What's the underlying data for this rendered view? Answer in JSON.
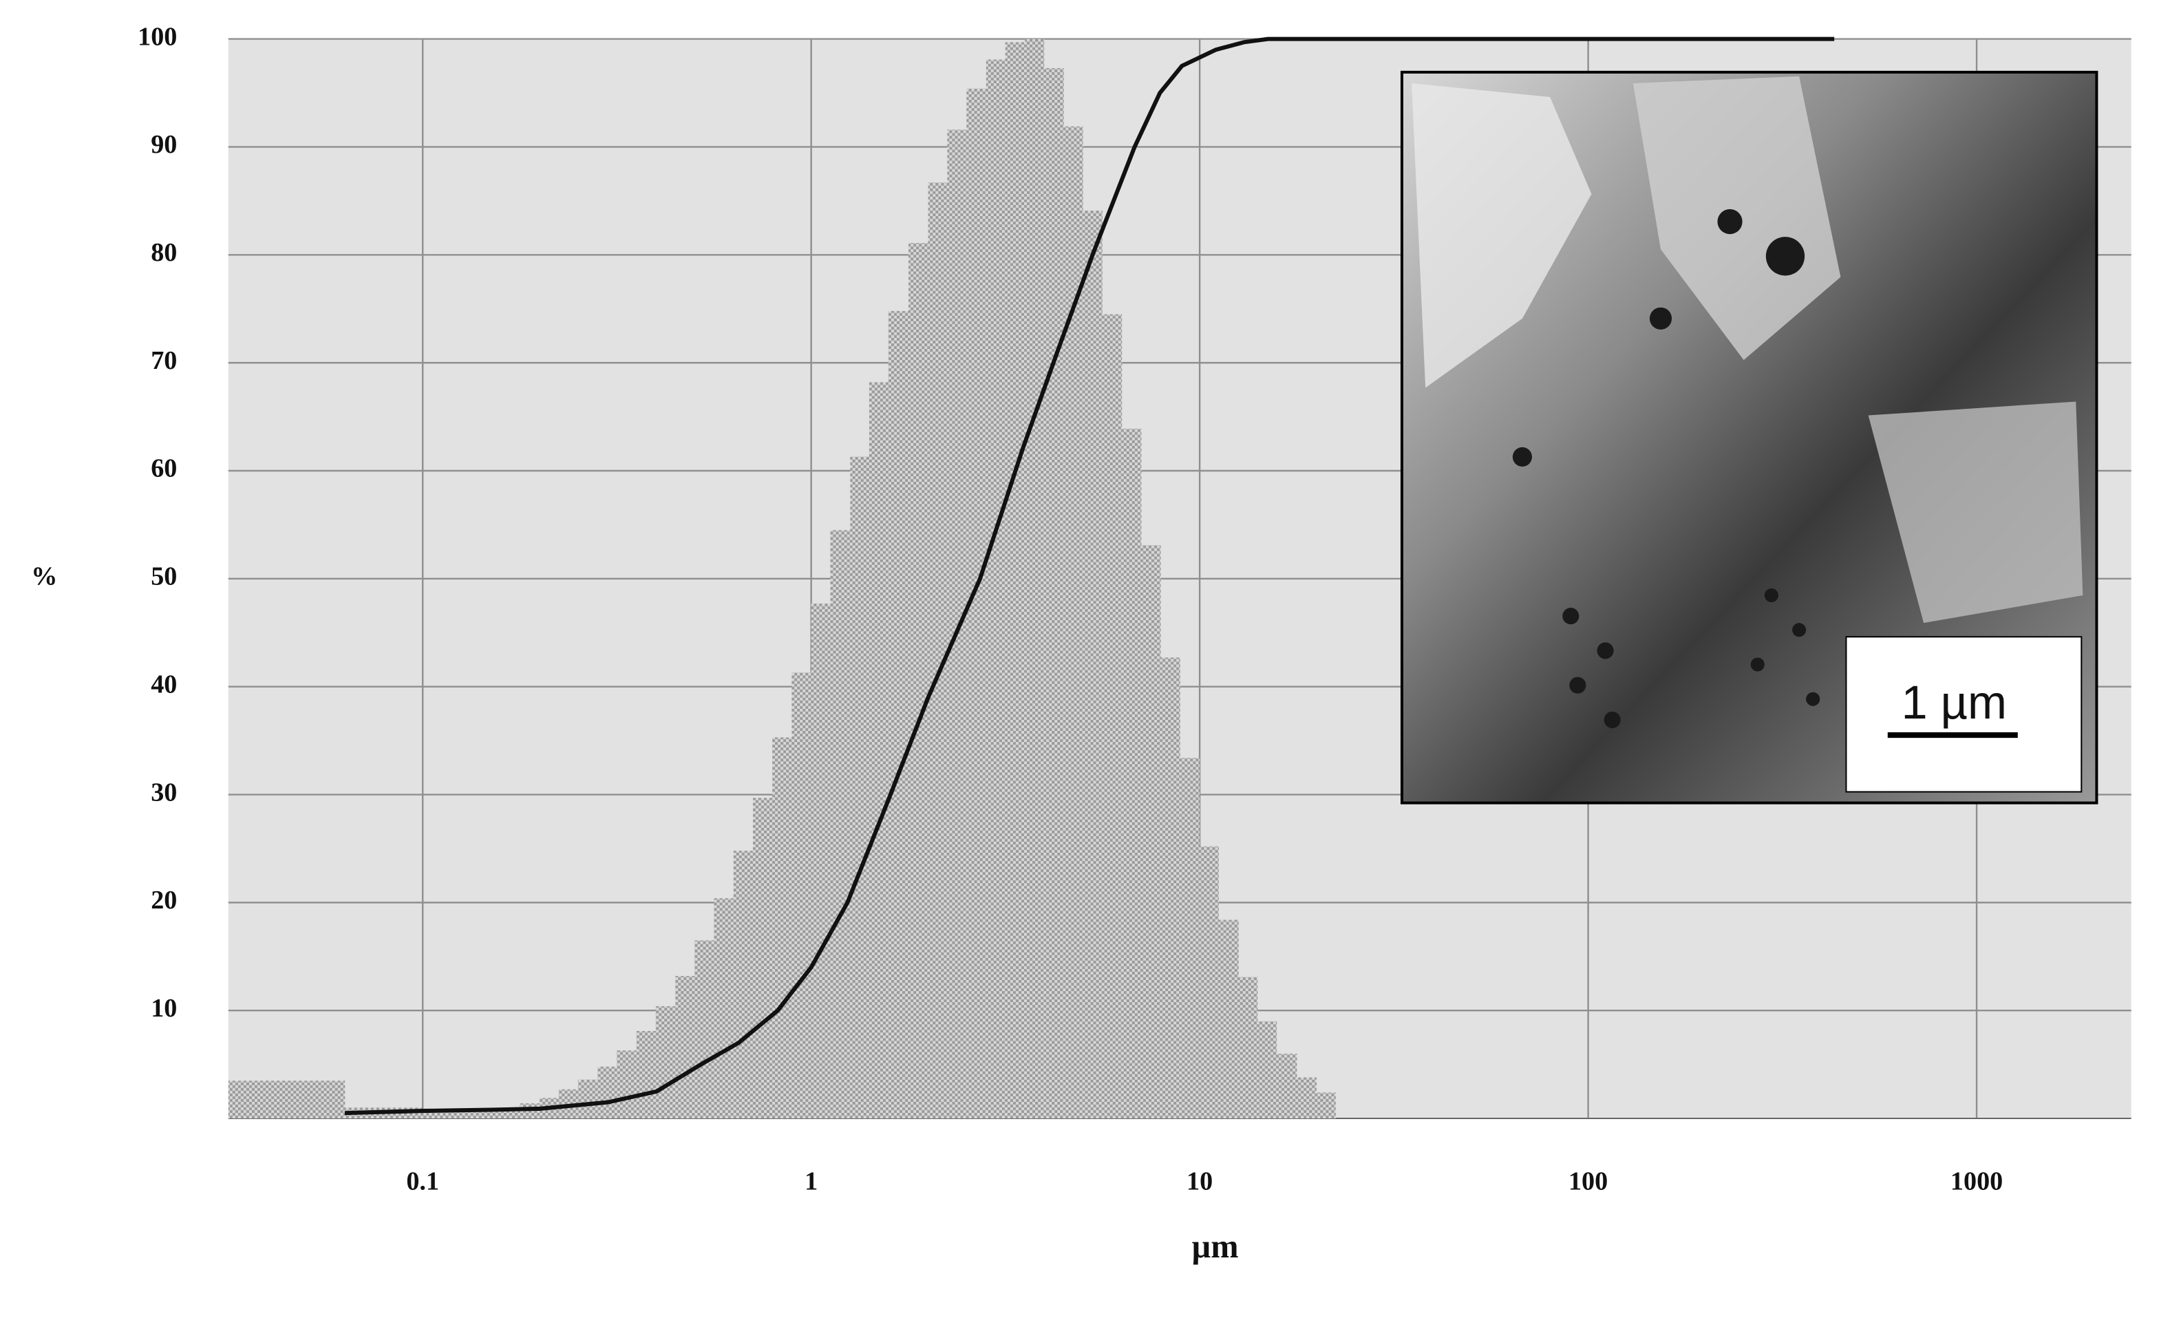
{
  "chart_data": {
    "type": "histogram",
    "log_x": true,
    "grid": true,
    "color": "#9a9a9a",
    "background": "#e2e2e2",
    "xlabel": "µm",
    "ylabel": "%",
    "xlim": [
      0.0316,
      2500
    ],
    "ylim": [
      0,
      100
    ],
    "xticks": [
      0.1,
      1,
      10,
      100,
      1000
    ],
    "yticks": [
      10,
      20,
      30,
      40,
      50,
      60,
      70,
      80,
      90,
      100
    ],
    "bins": [
      0.0316,
      0.0631,
      0.1,
      0.112,
      0.126,
      0.141,
      0.158,
      0.178,
      0.2,
      0.224,
      0.251,
      0.282,
      0.316,
      0.355,
      0.398,
      0.447,
      0.501,
      0.562,
      0.631,
      0.708,
      0.794,
      0.891,
      1,
      1.12,
      1.26,
      1.41,
      1.58,
      1.78,
      2,
      2.24,
      2.51,
      2.82,
      3.16,
      3.55,
      3.98,
      4.47,
      5.01,
      5.62,
      6.31,
      7.08,
      7.94,
      8.91,
      10,
      11.2,
      12.6,
      14.1,
      15.8,
      17.8,
      20,
      22.4
    ],
    "values": [
      3.5,
      1.0,
      0.8,
      0.8,
      0.8,
      0.8,
      1.0,
      1.4,
      1.9,
      2.7,
      3.6,
      4.8,
      6.3,
      8.1,
      10.4,
      13.2,
      16.5,
      20.4,
      24.8,
      29.7,
      35.3,
      41.3,
      47.7,
      54.5,
      61.3,
      68.2,
      74.8,
      81.1,
      86.7,
      91.6,
      95.4,
      98.1,
      99.7,
      100,
      97.3,
      91.9,
      84.1,
      74.5,
      63.9,
      53.1,
      42.7,
      33.4,
      25.2,
      18.4,
      13.1,
      9.0,
      6.0,
      3.8,
      2.4
    ],
    "curve": {
      "type": "line",
      "color": "#111111",
      "x": [
        0.063,
        0.1,
        0.15,
        0.2,
        0.3,
        0.4,
        0.52,
        0.65,
        0.82,
        1,
        1.24,
        1.6,
        2,
        2.72,
        3.5,
        4.3,
        5.3,
        6.8,
        7.9,
        9,
        11,
        13,
        15,
        20,
        430
      ],
      "values": [
        0.5,
        0.7,
        0.8,
        0.9,
        1.5,
        2.5,
        5,
        7,
        10,
        14,
        20,
        30,
        39,
        50,
        62,
        71,
        80,
        90,
        95,
        97.5,
        99,
        99.7,
        100,
        100,
        100
      ]
    },
    "inset_label": "1 µm"
  }
}
